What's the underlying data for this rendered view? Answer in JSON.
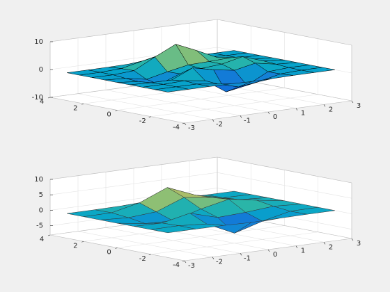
{
  "chart_data": [
    {
      "type": "surface",
      "colormap": "parula",
      "edge_color": "#000000",
      "grid": true,
      "x": [
        -3,
        -2.25,
        -1.5,
        -0.75,
        0,
        0.75,
        1.5,
        2.25,
        3
      ],
      "y": [
        -3,
        -2.25,
        -1.5,
        -0.75,
        0,
        0.75,
        1.5,
        2.25,
        3
      ],
      "z": [
        [
          0,
          0,
          0.01,
          -0.08,
          -0.25,
          -0.17,
          -0.03,
          0,
          0
        ],
        [
          0,
          0.01,
          0,
          -0.99,
          -3.02,
          -2.05,
          -0.35,
          -0.01,
          0
        ],
        [
          0,
          0.03,
          0.32,
          -0.67,
          -5.67,
          -4.32,
          -0.44,
          0.05,
          0
        ],
        [
          -0.01,
          -0.25,
          -0.28,
          3.09,
          1.4,
          0.2,
          1.78,
          0.41,
          0.01
        ],
        [
          -0.04,
          -0.69,
          -2.77,
          0.07,
          0.98,
          1.57,
          3.27,
          0.7,
          0.03
        ],
        [
          -0.01,
          -0.42,
          -1.77,
          -0.05,
          1.42,
          1.65,
          1.99,
          0.4,
          0.01
        ],
        [
          0,
          -0.03,
          0.48,
          4.38,
          7.99,
          4.72,
          1.19,
          0.12,
          0
        ],
        [
          0,
          0.02,
          0.36,
          2.07,
          3.65,
          2.09,
          0.41,
          0.03,
          0
        ],
        [
          0,
          0,
          0.03,
          0.17,
          0.3,
          0.17,
          0.03,
          0,
          0
        ]
      ],
      "xlim": [
        -3,
        3
      ],
      "ylim": [
        -4,
        4
      ],
      "zlim": [
        -10,
        10
      ],
      "xticks": [
        -3,
        -2,
        -1,
        0,
        1,
        2,
        3
      ],
      "yticks": [
        -4,
        -2,
        0,
        2,
        4
      ],
      "zticks": [
        -10,
        0,
        10
      ]
    },
    {
      "type": "surface",
      "colormap": "parula",
      "edge_color": "#333333",
      "grid": true,
      "x": [
        -3,
        -2,
        -1,
        0,
        1,
        2,
        3
      ],
      "y": [
        -3,
        -2,
        -1,
        0,
        1,
        2,
        3
      ],
      "z": [
        [
          0,
          0,
          -0.03,
          -0.25,
          -0.11,
          -0.01,
          0
        ],
        [
          0,
          0.05,
          -0.6,
          -4.76,
          -2.1,
          -0.06,
          0
        ],
        [
          -0.01,
          -0.13,
          1.85,
          -0.72,
          -0.27,
          0.5,
          0.01
        ],
        [
          -0.04,
          -1.33,
          -1.65,
          0.98,
          2.94,
          1.41,
          0.03
        ],
        [
          -0.01,
          -0.48,
          0.23,
          3.69,
          2.43,
          0.58,
          0.01
        ],
        [
          0,
          0.08,
          2.1,
          5.86,
          2.21,
          0.13,
          0
        ],
        [
          0,
          0.01,
          0.11,
          0.3,
          0.11,
          0.01,
          0
        ]
      ],
      "xlim": [
        -3,
        3
      ],
      "ylim": [
        -4,
        4
      ],
      "zlim": [
        -8,
        10
      ],
      "xticks": [
        -3,
        -2,
        -1,
        0,
        1,
        2,
        3
      ],
      "yticks": [
        -4,
        -2,
        0,
        2,
        4
      ],
      "zticks": [
        -5,
        0,
        5,
        10
      ]
    }
  ]
}
